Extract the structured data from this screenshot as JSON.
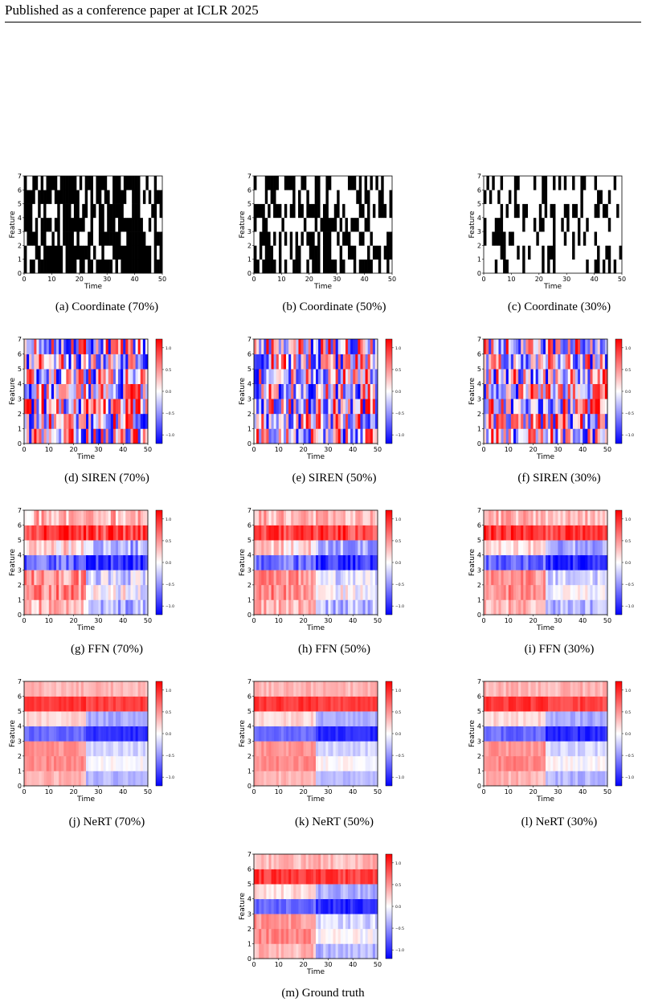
{
  "header": {
    "text": "Published as a conference paper at ICLR 2025"
  },
  "axes": {
    "xlabel": "Time",
    "ylabel": "Feature",
    "xticks": [
      "0",
      "10",
      "20",
      "30",
      "40",
      "50"
    ],
    "yticks": [
      "0",
      "1",
      "2",
      "3",
      "4",
      "5",
      "6",
      "7"
    ],
    "colorbar_ticks": [
      "1.0",
      "0.5",
      "0.0",
      "−0.5",
      "−1.0"
    ]
  },
  "chart_data": [
    {
      "id": "a",
      "type": "heatmap",
      "kind": "mask",
      "caption": "(a)  Coordinate (70%)",
      "observed_fraction": 0.7,
      "xlim": [
        0,
        50
      ],
      "ylim": [
        0,
        7
      ],
      "colormap": "binary"
    },
    {
      "id": "b",
      "type": "heatmap",
      "kind": "mask",
      "caption": "(b)  Coordinate (50%)",
      "observed_fraction": 0.5,
      "xlim": [
        0,
        50
      ],
      "ylim": [
        0,
        7
      ],
      "colormap": "binary"
    },
    {
      "id": "c",
      "type": "heatmap",
      "kind": "mask",
      "caption": "(c)  Coordinate (30%)",
      "observed_fraction": 0.3,
      "xlim": [
        0,
        50
      ],
      "ylim": [
        0,
        7
      ],
      "colormap": "binary"
    },
    {
      "id": "d",
      "type": "heatmap",
      "kind": "siren",
      "caption": "(d)  SIREN (70%)",
      "xlim": [
        0,
        50
      ],
      "ylim": [
        0,
        7
      ],
      "clim": [
        -1.2,
        1.2
      ],
      "colormap": "bwr"
    },
    {
      "id": "e",
      "type": "heatmap",
      "kind": "siren",
      "caption": "(e)  SIREN (50%)",
      "xlim": [
        0,
        50
      ],
      "ylim": [
        0,
        7
      ],
      "clim": [
        -1.2,
        1.2
      ],
      "colormap": "bwr"
    },
    {
      "id": "f",
      "type": "heatmap",
      "kind": "siren",
      "caption": "(f)  SIREN (30%)",
      "xlim": [
        0,
        50
      ],
      "ylim": [
        0,
        7
      ],
      "clim": [
        -1.2,
        1.2
      ],
      "colormap": "bwr"
    },
    {
      "id": "g",
      "type": "heatmap",
      "kind": "smooth",
      "caption": "(g)  FFN (70%)",
      "noise": 0.35,
      "xlim": [
        0,
        50
      ],
      "ylim": [
        0,
        7
      ],
      "clim": [
        -1.2,
        1.2
      ],
      "colormap": "bwr"
    },
    {
      "id": "h",
      "type": "heatmap",
      "kind": "smooth",
      "caption": "(h)  FFN (50%)",
      "noise": 0.3,
      "xlim": [
        0,
        50
      ],
      "ylim": [
        0,
        7
      ],
      "clim": [
        -1.2,
        1.2
      ],
      "colormap": "bwr"
    },
    {
      "id": "i",
      "type": "heatmap",
      "kind": "smooth",
      "caption": "(i)  FFN (30%)",
      "noise": 0.25,
      "xlim": [
        0,
        50
      ],
      "ylim": [
        0,
        7
      ],
      "clim": [
        -1.2,
        1.2
      ],
      "colormap": "bwr"
    },
    {
      "id": "j",
      "type": "heatmap",
      "kind": "smooth",
      "caption": "(j)  NeRT (70%)",
      "noise": 0.12,
      "xlim": [
        0,
        50
      ],
      "ylim": [
        0,
        7
      ],
      "clim": [
        -1.2,
        1.2
      ],
      "colormap": "bwr"
    },
    {
      "id": "k",
      "type": "heatmap",
      "kind": "smooth",
      "caption": "(k)  NeRT (50%)",
      "noise": 0.12,
      "xlim": [
        0,
        50
      ],
      "ylim": [
        0,
        7
      ],
      "clim": [
        -1.2,
        1.2
      ],
      "colormap": "bwr"
    },
    {
      "id": "l",
      "type": "heatmap",
      "kind": "smooth",
      "caption": "(l)  NeRT (30%)",
      "noise": 0.14,
      "xlim": [
        0,
        50
      ],
      "ylim": [
        0,
        7
      ],
      "clim": [
        -1.2,
        1.2
      ],
      "colormap": "bwr"
    },
    {
      "id": "m",
      "type": "heatmap",
      "kind": "smooth",
      "caption": "(m)  Ground truth",
      "noise": 0.18,
      "xlim": [
        0,
        50
      ],
      "ylim": [
        0,
        7
      ],
      "clim": [
        -1.2,
        1.2
      ],
      "colormap": "bwr"
    }
  ]
}
